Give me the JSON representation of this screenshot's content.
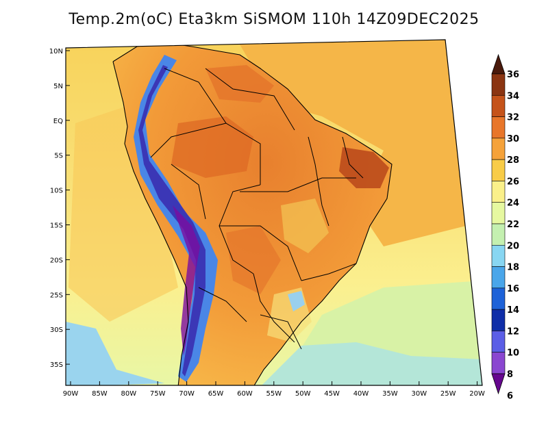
{
  "title": "Temp.2m(oC) Eta3km SiSMOM 110h 14Z09DEC2025",
  "map": {
    "variable": "2 m air temperature (degC)",
    "region": "South America",
    "lon_range": [
      -90,
      -20
    ],
    "lat_range": [
      -37,
      11
    ],
    "lat_ticks": [
      "10N",
      "5N",
      "EQ",
      "5S",
      "10S",
      "15S",
      "20S",
      "25S",
      "30S",
      "35S"
    ],
    "lon_ticks": [
      "90W",
      "85W",
      "80W",
      "75W",
      "70W",
      "65W",
      "60W",
      "55W",
      "50W",
      "45W",
      "40W",
      "35W",
      "30W",
      "25W",
      "20W"
    ]
  },
  "colorbar": {
    "labels": [
      "36",
      "34",
      "32",
      "30",
      "28",
      "26",
      "24",
      "22",
      "20",
      "18",
      "16",
      "14",
      "12",
      "10",
      "8",
      "6"
    ],
    "colors": [
      "#4a1a0c",
      "#8b3512",
      "#c5531a",
      "#e8762a",
      "#f5a23a",
      "#f8cc48",
      "#faf08a",
      "#e6f8a0",
      "#c4f0b0",
      "#88d6f2",
      "#4aa6ea",
      "#1d62d8",
      "#0f2ea8",
      "#5b5ee6",
      "#8a46d0",
      "#66078f"
    ]
  }
}
